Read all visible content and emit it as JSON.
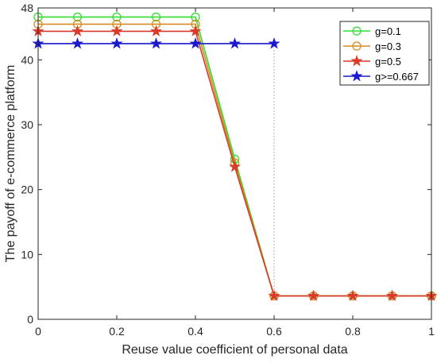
{
  "chart_data": {
    "type": "line",
    "xlabel": "Reuse value coefficient of personal data",
    "ylabel": "The payoff of e-commerce platform",
    "xlim": [
      0,
      1
    ],
    "ylim": [
      0,
      48
    ],
    "xticks": [
      0,
      0.2,
      0.4,
      0.6,
      0.8,
      1
    ],
    "xtick_labels": [
      "0",
      "0.2",
      "0.4",
      "0.6",
      "0.8",
      "1"
    ],
    "yticks": [
      0,
      10,
      20,
      30,
      40,
      48
    ],
    "ytick_labels": [
      "0",
      "10",
      "20",
      "30",
      "40",
      "48"
    ],
    "grid": false,
    "legend_position": "top-right",
    "x": [
      0,
      0.1,
      0.2,
      0.3,
      0.4,
      0.5,
      0.6,
      0.7,
      0.8,
      0.9,
      1
    ],
    "series": [
      {
        "name": "g=0.1",
        "color": "#33dd33",
        "marker": "circle",
        "values": [
          46.6,
          46.6,
          46.6,
          46.6,
          46.6,
          24.7,
          3.6,
          3.6,
          3.6,
          3.6,
          3.6
        ]
      },
      {
        "name": "g=0.3",
        "color": "#d98a1f",
        "marker": "circle",
        "values": [
          45.5,
          45.5,
          45.5,
          45.5,
          45.5,
          24.1,
          3.6,
          3.6,
          3.6,
          3.6,
          3.6
        ]
      },
      {
        "name": "g=0.5",
        "color": "#d93a2b",
        "marker": "star",
        "values": [
          44.4,
          44.4,
          44.4,
          44.4,
          44.4,
          23.5,
          3.6,
          3.6,
          3.6,
          3.6,
          3.6
        ]
      },
      {
        "name": "g>=0.667",
        "color": "#1a1acc",
        "marker": "star",
        "values": [
          42.5,
          42.5,
          42.5,
          42.5,
          42.5,
          42.5,
          42.5,
          null,
          null,
          null,
          null
        ]
      }
    ],
    "reference_line": {
      "x": 0.6,
      "from": 3.6,
      "to": 42.5,
      "style": "dotted",
      "color": "#999999"
    }
  }
}
